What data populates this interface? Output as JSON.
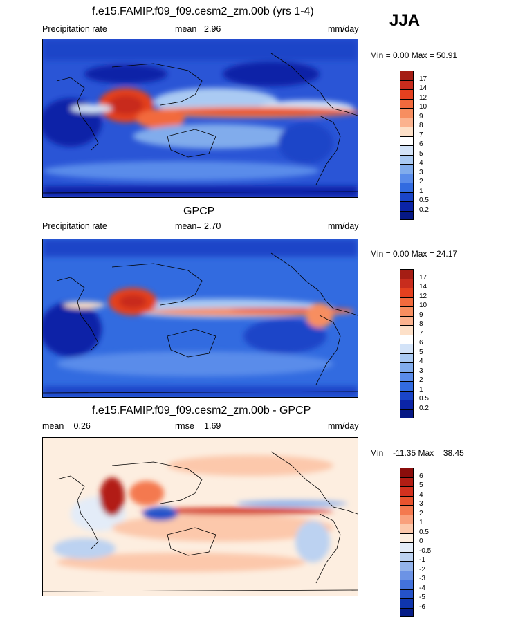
{
  "season": "JJA",
  "panels": [
    {
      "id": "model",
      "title": "f.e15.FAMIP.f09_f09.cesm2_zm.00b (yrs 1-4)",
      "left_label": "Precipitation rate",
      "center_label": "mean=   2.96",
      "right_label": "mm/day",
      "minmax": "Min =   0.00 Max =  50.91",
      "colorbar_levels": [
        "17",
        "14",
        "12",
        "10",
        "9",
        "8",
        "7",
        "6",
        "5",
        "4",
        "3",
        "2",
        "1",
        "0.5",
        "0.2"
      ],
      "colorbar_colors": [
        "#a51d14",
        "#c82c1d",
        "#e4401f",
        "#f26a3d",
        "#f78e60",
        "#fbb28e",
        "#fde0c8",
        "#ffffff",
        "#d3e3f8",
        "#aacaf3",
        "#81acec",
        "#5a8cea",
        "#326be0",
        "#1a45c8",
        "#0b24a7",
        "#061885"
      ]
    },
    {
      "id": "obs",
      "title": "GPCP",
      "left_label": "Precipitation rate",
      "center_label": "mean=   2.70",
      "right_label": "mm/day",
      "minmax": "Min =   0.00 Max =  24.17",
      "colorbar_levels": [
        "17",
        "14",
        "12",
        "10",
        "9",
        "8",
        "7",
        "6",
        "5",
        "4",
        "3",
        "2",
        "1",
        "0.5",
        "0.2"
      ],
      "colorbar_colors": [
        "#a51d14",
        "#c82c1d",
        "#e4401f",
        "#f26a3d",
        "#f78e60",
        "#fbb28e",
        "#fde0c8",
        "#ffffff",
        "#d3e3f8",
        "#aacaf3",
        "#81acec",
        "#5a8cea",
        "#326be0",
        "#1a45c8",
        "#0b24a7",
        "#061885"
      ]
    },
    {
      "id": "diff",
      "title": "f.e15.FAMIP.f09_f09.cesm2_zm.00b - GPCP",
      "left_label": "mean =   0.26",
      "center_label": "rmse =   1.69",
      "right_label": "mm/day",
      "minmax": "Min = -11.35 Max =  38.45",
      "colorbar_levels": [
        "6",
        "5",
        "4",
        "3",
        "2",
        "1",
        "0.5",
        "0",
        "-0.5",
        "-1",
        "-2",
        "-3",
        "-4",
        "-5",
        "-6"
      ],
      "colorbar_colors": [
        "#8a0d0b",
        "#b21d14",
        "#d3311f",
        "#e9532e",
        "#f4794f",
        "#f9a07c",
        "#fcc8ab",
        "#fdeee0",
        "#e3ecf8",
        "#bcd2f1",
        "#93b3eb",
        "#6c93e5",
        "#4372dc",
        "#2552c9",
        "#0f35ad",
        "#061d88"
      ]
    }
  ]
}
